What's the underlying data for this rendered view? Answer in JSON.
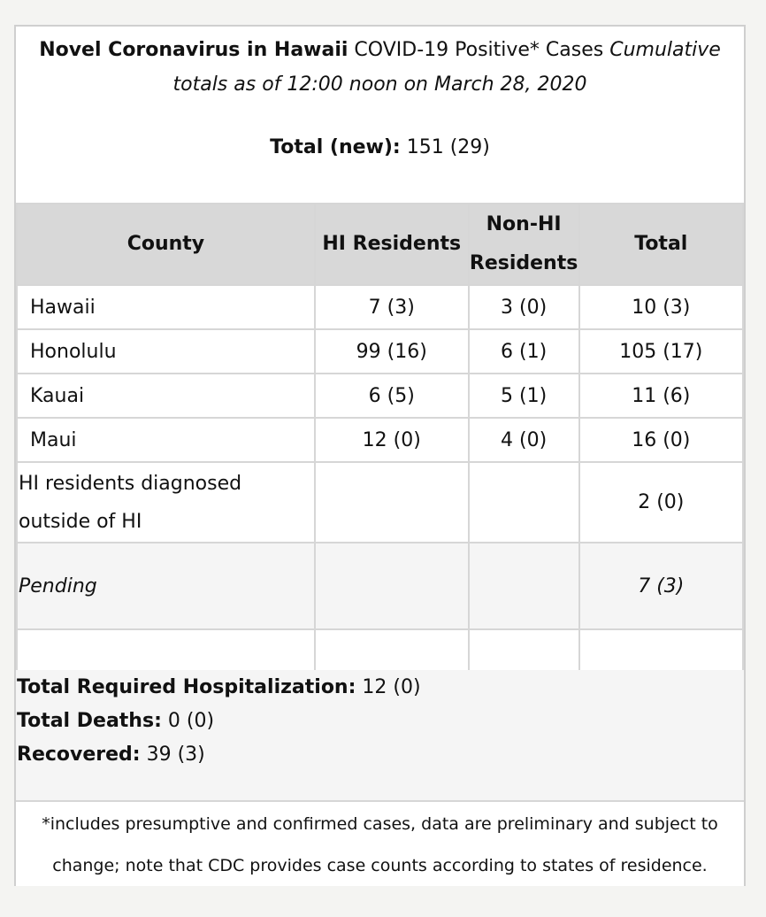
{
  "header": {
    "title_bold": "Novel Coronavirus in Hawaii",
    "title_mid": " COVID-19 Positive* Cases ",
    "title_italic_1": "Cumulative",
    "title_italic_2": "totals as of 12:00 noon on March 28, 2020",
    "total_label": "Total (new):",
    "total_value": " 151 (29)"
  },
  "table": {
    "columns": {
      "county": "County",
      "hi_residents": "HI Residents",
      "non_hi_1": "Non-HI",
      "non_hi_2": "Residents",
      "total": "Total"
    },
    "rows": [
      {
        "county": "Hawaii",
        "hi": "7 (3)",
        "non_hi": "3 (0)",
        "total": "10 (3)"
      },
      {
        "county": "Honolulu",
        "hi": "99 (16)",
        "non_hi": "6 (1)",
        "total": "105 (17)"
      },
      {
        "county": "Kauai",
        "hi": "6 (5)",
        "non_hi": "5 (1)",
        "total": "11 (6)"
      },
      {
        "county": "Maui",
        "hi": "12 (0)",
        "non_hi": "4 (0)",
        "total": "16 (0)"
      }
    ],
    "outside": {
      "label_1": "HI residents diagnosed",
      "label_2": "outside of HI",
      "total": "2 (0)"
    },
    "pending": {
      "label": "Pending",
      "total": "7 (3)"
    }
  },
  "summary": {
    "hosp_label": "Total Required Hospitalization:",
    "hosp_value": " 12 (0)",
    "deaths_label": "Total Deaths:",
    "deaths_value": " 0 (0)",
    "recovered_label": "Recovered:",
    "recovered_value": " 39 (3)"
  },
  "footnote": {
    "line_1": "*includes presumptive and confirmed cases, data are preliminary and subject to",
    "line_2": "change; note that CDC provides case counts according to states of residence."
  }
}
